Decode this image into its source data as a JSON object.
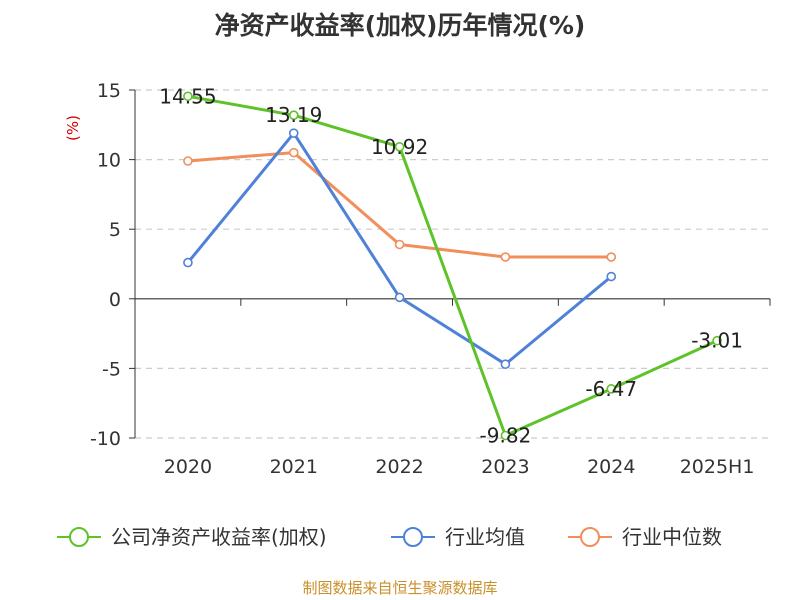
{
  "chart_data": {
    "type": "line",
    "title": "净资产收益率(加权)历年情况(%)",
    "ylabel": "(%)",
    "xlabel": "",
    "categories": [
      "2020",
      "2021",
      "2022",
      "2023",
      "2024",
      "2025H1"
    ],
    "ylim": [
      -10,
      15
    ],
    "yticks": [
      15,
      10,
      5,
      0,
      -5,
      -10
    ],
    "ytick_labels": [
      "15",
      "10",
      "5",
      "0",
      "-5",
      "-10"
    ],
    "grid": "horizontal dashed",
    "legend_position": "bottom",
    "series": [
      {
        "name": "公司净资产收益率(加权)",
        "color": "#5ec229",
        "values": [
          14.55,
          13.19,
          10.92,
          -9.82,
          -6.47,
          -3.01
        ],
        "labels": [
          "14.55",
          "13.19",
          "10.92",
          "-9.82",
          "-6.47",
          "-3.01"
        ]
      },
      {
        "name": "行业均值",
        "color": "#4f81d9",
        "values": [
          2.6,
          11.9,
          0.1,
          -4.7,
          1.6,
          null
        ]
      },
      {
        "name": "行业中位数",
        "color": "#f28e5b",
        "values": [
          9.9,
          10.5,
          3.9,
          3.0,
          3.0,
          null
        ]
      }
    ],
    "source": "制图数据来自恒生聚源数据库"
  }
}
